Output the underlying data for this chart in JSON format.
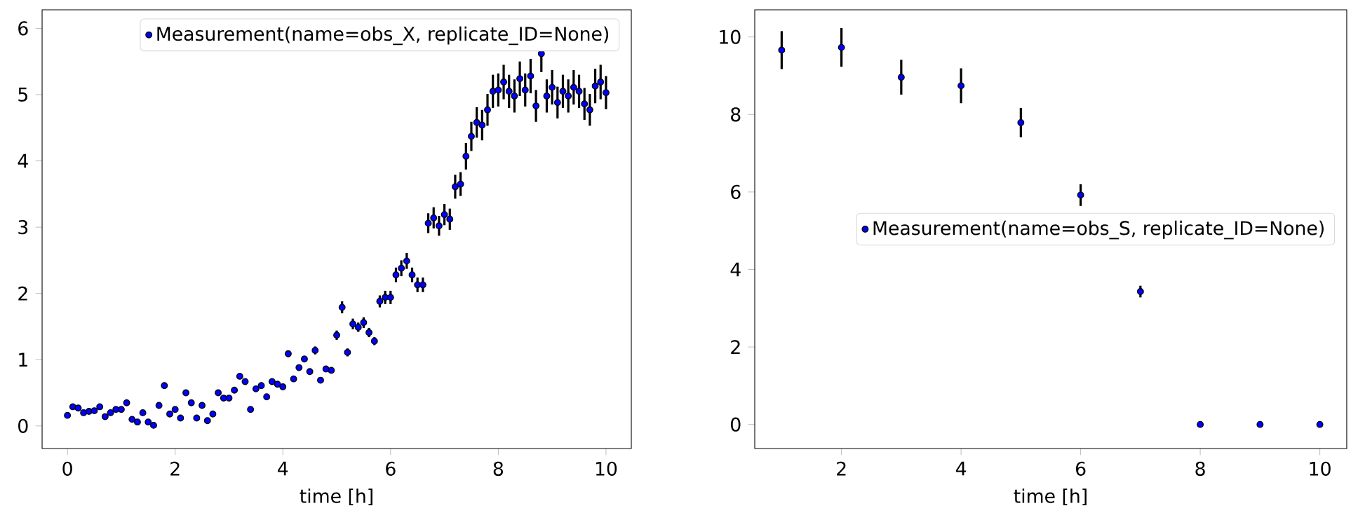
{
  "chart_data": [
    {
      "type": "scatter",
      "xlabel": "time [h]",
      "xlim": [
        -0.47,
        10.47
      ],
      "ylim": [
        -0.34,
        6.28
      ],
      "xticks": [
        0,
        2,
        4,
        6,
        8,
        10
      ],
      "yticks": [
        0,
        1,
        2,
        3,
        4,
        5,
        6
      ],
      "marker": "circle",
      "legend": "top right",
      "series": [
        {
          "name": "Measurement(name=obs_X, replicate_ID=None)",
          "color": "#0000ff",
          "x": [
            0,
            0.1,
            0.2,
            0.3,
            0.4,
            0.5,
            0.6,
            0.7,
            0.8,
            0.9,
            1,
            1.1,
            1.2,
            1.3,
            1.4,
            1.5,
            1.6,
            1.7,
            1.8,
            1.9,
            2,
            2.1,
            2.2,
            2.3,
            2.4,
            2.5,
            2.6,
            2.7,
            2.8,
            2.9,
            3,
            3.1,
            3.2,
            3.3,
            3.4,
            3.5,
            3.6,
            3.7,
            3.8,
            3.9,
            4,
            4.1,
            4.2,
            4.3,
            4.4,
            4.5,
            4.6,
            4.7,
            4.8,
            4.9,
            5,
            5.1,
            5.2,
            5.3,
            5.4,
            5.5,
            5.6,
            5.7,
            5.8,
            5.9,
            6,
            6.1,
            6.2,
            6.3,
            6.4,
            6.5,
            6.6,
            6.7,
            6.8,
            6.9,
            7,
            7.1,
            7.2,
            7.3,
            7.4,
            7.5,
            7.6,
            7.7,
            7.8,
            7.9,
            8,
            8.1,
            8.2,
            8.3,
            8.4,
            8.5,
            8.6,
            8.7,
            8.8,
            8.9,
            9,
            9.1,
            9.2,
            9.3,
            9.4,
            9.5,
            9.6,
            9.7,
            9.8,
            9.9,
            10
          ],
          "values": [
            0.16,
            0.29,
            0.27,
            0.2,
            0.22,
            0.23,
            0.29,
            0.14,
            0.2,
            0.25,
            0.25,
            0.35,
            0.1,
            0.06,
            0.2,
            0.06,
            0.01,
            0.31,
            0.61,
            0.18,
            0.25,
            0.12,
            0.5,
            0.35,
            0.12,
            0.31,
            0.08,
            0.18,
            0.5,
            0.42,
            0.42,
            0.54,
            0.75,
            0.67,
            0.25,
            0.56,
            0.61,
            0.44,
            0.67,
            0.63,
            0.59,
            1.09,
            0.71,
            0.88,
            1.01,
            0.82,
            1.14,
            0.69,
            0.86,
            0.84,
            1.37,
            1.79,
            1.11,
            1.54,
            1.49,
            1.56,
            1.41,
            1.28,
            1.88,
            1.94,
            1.94,
            2.28,
            2.38,
            2.49,
            2.28,
            2.13,
            2.13,
            3.06,
            3.14,
            3.02,
            3.19,
            3.12,
            3.61,
            3.65,
            4.07,
            4.37,
            4.58,
            4.54,
            4.77,
            5.05,
            5.07,
            5.19,
            5.05,
            4.98,
            5.24,
            5.07,
            5.28,
            4.83,
            5.62,
            4.98,
            5.11,
            4.88,
            5.05,
            4.98,
            5.11,
            5.05,
            4.86,
            4.77,
            5.13,
            5.19,
            5.03
          ],
          "errors": [
            null,
            null,
            null,
            null,
            null,
            null,
            null,
            null,
            null,
            null,
            null,
            null,
            null,
            null,
            null,
            null,
            null,
            null,
            null,
            null,
            null,
            null,
            null,
            null,
            null,
            null,
            null,
            null,
            null,
            null,
            null,
            null,
            null,
            null,
            null,
            null,
            null,
            null,
            null,
            null,
            null,
            0.05,
            null,
            null,
            0.05,
            null,
            0.06,
            null,
            null,
            null,
            0.07,
            0.09,
            0.06,
            0.08,
            0.07,
            0.08,
            0.07,
            0.06,
            0.09,
            0.1,
            0.1,
            0.11,
            0.12,
            0.12,
            0.11,
            0.11,
            0.11,
            0.15,
            0.16,
            0.15,
            0.16,
            0.16,
            0.18,
            0.18,
            0.2,
            0.22,
            0.23,
            0.23,
            0.24,
            0.25,
            0.25,
            0.26,
            0.25,
            0.25,
            0.26,
            0.25,
            0.26,
            0.24,
            0.28,
            0.25,
            0.26,
            0.24,
            0.25,
            0.25,
            0.26,
            0.25,
            0.24,
            0.24,
            0.26,
            0.26,
            0.25
          ]
        }
      ]
    },
    {
      "type": "scatter",
      "xlabel": "time [h]",
      "xlim": [
        0.55,
        10.45
      ],
      "ylim": [
        -0.62,
        10.7
      ],
      "xticks": [
        2,
        4,
        6,
        8,
        10
      ],
      "yticks": [
        0,
        2,
        4,
        6,
        8,
        10
      ],
      "marker": "circle",
      "legend": "right",
      "series": [
        {
          "name": "Measurement(name=obs_S, replicate_ID=None)",
          "color": "#0000ff",
          "x": [
            1,
            2,
            3,
            4,
            5,
            6,
            7,
            8,
            9,
            10
          ],
          "values": [
            9.66,
            9.73,
            8.96,
            8.74,
            7.79,
            5.92,
            3.43,
            0,
            0,
            0
          ],
          "errors": [
            0.49,
            0.5,
            0.45,
            0.45,
            0.38,
            0.28,
            0.15,
            null,
            null,
            null
          ]
        }
      ]
    }
  ]
}
